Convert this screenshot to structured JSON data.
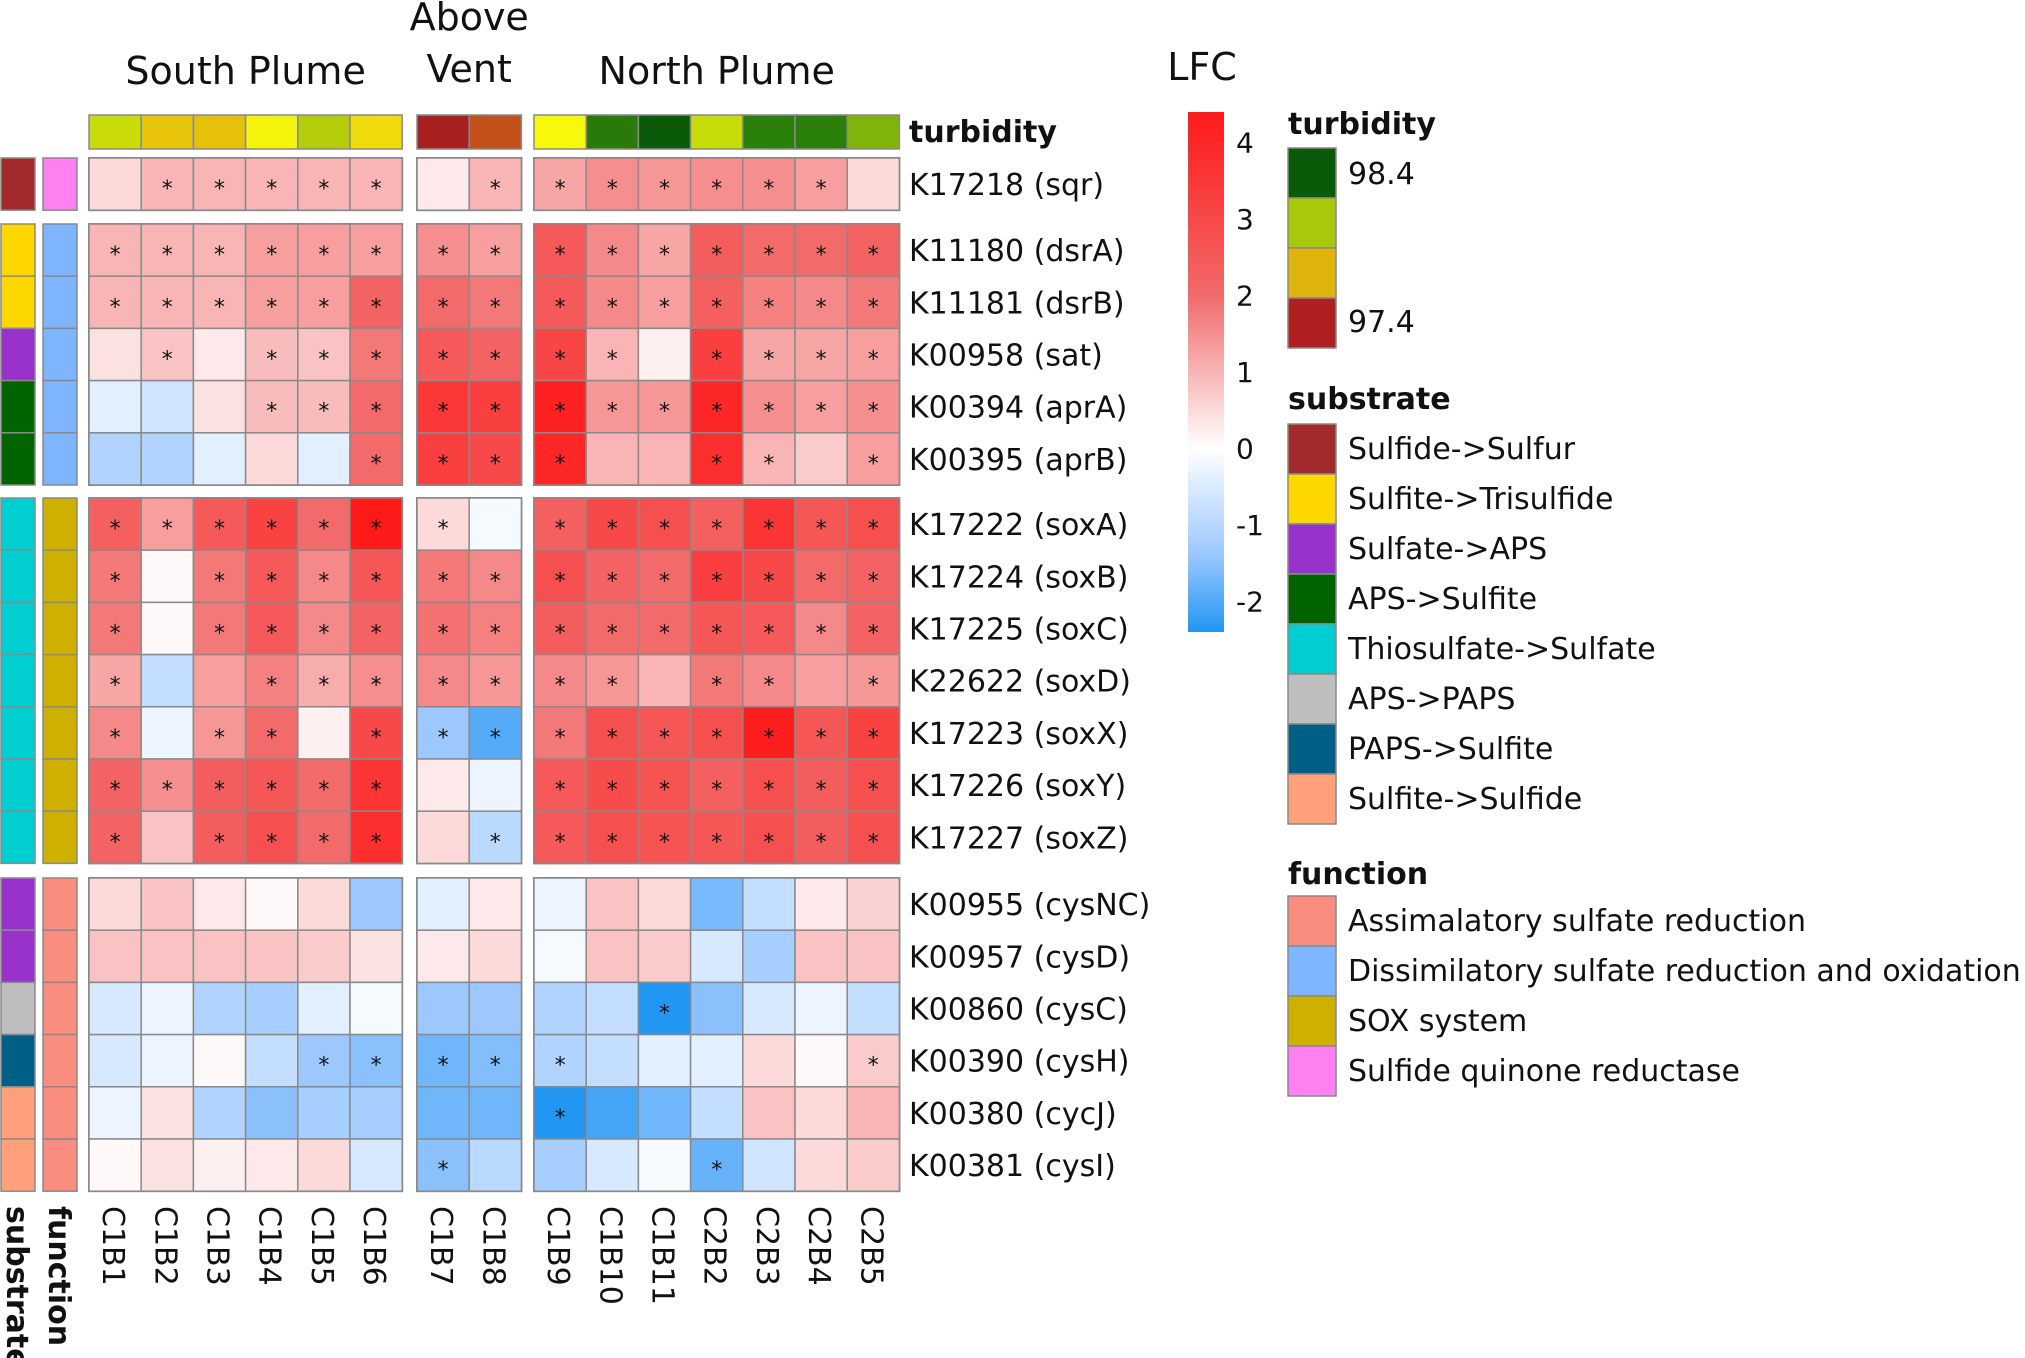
{
  "chart_data": {
    "type": "heatmap",
    "value_label": "LFC",
    "colorbar": {
      "min": -2.4,
      "max": 4.4,
      "ticks": [
        "4",
        "3",
        "2",
        "1",
        "0",
        "-1",
        "-2"
      ],
      "tick_values": [
        4,
        3,
        2,
        1,
        0,
        -1,
        -2
      ]
    },
    "groups": [
      {
        "name": "South Plume",
        "columns": [
          "C1B1",
          "C1B2",
          "C1B3",
          "C1B4",
          "C1B5",
          "C1B6"
        ]
      },
      {
        "name": "Above Vent",
        "name_lines": [
          "Above",
          "Vent"
        ],
        "columns": [
          "C1B7",
          "C1B8"
        ]
      },
      {
        "name": "North Plume",
        "columns": [
          "C1B9",
          "C1B10",
          "C1B11",
          "C2B2",
          "C2B3",
          "C2B4",
          "C2B5"
        ]
      }
    ],
    "columns": [
      "C1B1",
      "C1B2",
      "C1B3",
      "C1B4",
      "C1B5",
      "C1B6",
      "C1B7",
      "C1B8",
      "C1B9",
      "C1B10",
      "C1B11",
      "C2B2",
      "C2B3",
      "C2B4",
      "C2B5"
    ],
    "turbidity": {
      "label": "turbidity",
      "colors": [
        "#c8dc0a",
        "#e8c40a",
        "#e6c00a",
        "#f4f40a",
        "#b4cc0a",
        "#f0dc0a",
        "#a82020",
        "#c4501a",
        "#f8f80a",
        "#2a7a0a",
        "#0a5a0a",
        "#c8dc0a",
        "#2a800a",
        "#2a800a",
        "#80b40a"
      ]
    },
    "row_groups": [
      [
        {
          "label": "K17218 (sqr)",
          "substrate": "Sulfide->Sulfur",
          "function": "Sulfide quinone reductase",
          "values": [
            0.5,
            1.0,
            1.0,
            1.0,
            1.0,
            1.0,
            0.3,
            1.0,
            1.2,
            1.5,
            1.4,
            1.5,
            1.5,
            1.3,
            0.5
          ],
          "sig": [
            0,
            1,
            1,
            1,
            1,
            1,
            0,
            1,
            1,
            1,
            1,
            1,
            1,
            1,
            0
          ]
        }
      ],
      [
        {
          "label": "K11180 (dsrA)",
          "substrate": "Sulfite->Trisulfide",
          "function": "Dissimilatory sulfate reduction and oxidation",
          "values": [
            1.0,
            1.0,
            1.0,
            1.3,
            1.3,
            1.3,
            1.5,
            1.3,
            2.5,
            1.6,
            1.2,
            2.4,
            2.0,
            2.0,
            2.2
          ],
          "sig": [
            1,
            1,
            1,
            1,
            1,
            1,
            1,
            1,
            1,
            1,
            1,
            1,
            1,
            1,
            1
          ]
        },
        {
          "label": "K11181 (dsrB)",
          "substrate": "Sulfite->Trisulfide",
          "function": "Dissimilatory sulfate reduction and oxidation",
          "values": [
            1.0,
            1.0,
            1.0,
            1.3,
            1.3,
            2.2,
            2.0,
            1.8,
            2.5,
            1.6,
            1.3,
            2.3,
            1.7,
            1.6,
            1.8
          ],
          "sig": [
            1,
            1,
            1,
            1,
            1,
            1,
            1,
            1,
            1,
            1,
            1,
            1,
            1,
            1,
            1
          ]
        },
        {
          "label": "K00958 (sat)",
          "substrate": "Sulfate->APS",
          "function": "Dissimilatory sulfate reduction and oxidation",
          "values": [
            0.4,
            0.8,
            0.3,
            0.9,
            0.8,
            1.8,
            2.5,
            2.2,
            3.1,
            1.0,
            0.2,
            3.3,
            1.2,
            1.2,
            1.3
          ],
          "sig": [
            0,
            1,
            0,
            1,
            1,
            1,
            1,
            1,
            1,
            1,
            0,
            1,
            1,
            1,
            1
          ]
        },
        {
          "label": "K00394 (aprA)",
          "substrate": "APS->Sulfite",
          "function": "Dissimilatory sulfate reduction and oxidation",
          "values": [
            -0.3,
            -0.5,
            0.4,
            0.9,
            0.9,
            2.0,
            3.5,
            3.3,
            4.2,
            1.4,
            1.4,
            4.0,
            1.5,
            1.3,
            1.5
          ],
          "sig": [
            0,
            0,
            0,
            1,
            1,
            1,
            1,
            1,
            1,
            1,
            1,
            1,
            1,
            1,
            1
          ]
        },
        {
          "label": "K00395 (aprB)",
          "substrate": "APS->Sulfite",
          "function": "Dissimilatory sulfate reduction and oxidation",
          "values": [
            -0.8,
            -0.8,
            -0.3,
            0.5,
            -0.3,
            2.0,
            3.3,
            3.0,
            4.0,
            1.0,
            1.0,
            3.8,
            1.0,
            0.7,
            1.3
          ],
          "sig": [
            0,
            0,
            0,
            0,
            0,
            1,
            1,
            1,
            1,
            0,
            0,
            1,
            1,
            0,
            1
          ]
        }
      ],
      [
        {
          "label": "K17222 (soxA)",
          "substrate": "Thiosulfate->Sulfate",
          "function": "SOX system",
          "values": [
            2.3,
            1.3,
            2.5,
            3.2,
            2.0,
            4.4,
            0.5,
            -0.1,
            2.3,
            3.0,
            2.8,
            2.3,
            3.6,
            2.6,
            2.8
          ],
          "sig": [
            1,
            1,
            1,
            1,
            1,
            1,
            1,
            0,
            1,
            1,
            1,
            1,
            1,
            1,
            1
          ]
        },
        {
          "label": "K17224 (soxB)",
          "substrate": "Thiosulfate->Sulfate",
          "function": "SOX system",
          "values": [
            1.8,
            0.1,
            1.8,
            2.5,
            1.6,
            2.6,
            1.8,
            1.6,
            2.8,
            2.2,
            2.0,
            3.3,
            3.0,
            2.0,
            2.2
          ],
          "sig": [
            1,
            0,
            1,
            1,
            1,
            1,
            1,
            1,
            1,
            1,
            1,
            1,
            1,
            1,
            1
          ]
        },
        {
          "label": "K17225 (soxC)",
          "substrate": "Thiosulfate->Sulfate",
          "function": "SOX system",
          "values": [
            1.8,
            0.1,
            1.8,
            2.5,
            1.6,
            2.2,
            1.9,
            1.7,
            2.4,
            2.0,
            2.0,
            2.6,
            2.5,
            1.6,
            2.2
          ],
          "sig": [
            1,
            0,
            1,
            1,
            1,
            1,
            1,
            1,
            1,
            1,
            1,
            1,
            1,
            1,
            1
          ]
        },
        {
          "label": "K22622 (soxD)",
          "substrate": "Thiosulfate->Sulfate",
          "function": "SOX system",
          "values": [
            1.2,
            -0.6,
            1.3,
            1.7,
            1.1,
            1.5,
            1.6,
            1.4,
            1.6,
            1.4,
            1.0,
            1.8,
            1.6,
            1.3,
            1.4
          ],
          "sig": [
            1,
            0,
            0,
            1,
            1,
            1,
            1,
            1,
            1,
            1,
            0,
            1,
            1,
            0,
            1
          ]
        },
        {
          "label": "K17223 (soxX)",
          "substrate": "Thiosulfate->Sulfate",
          "function": "SOX system",
          "values": [
            1.6,
            -0.2,
            1.4,
            2.0,
            0.2,
            3.0,
            -1.0,
            -1.8,
            1.8,
            2.8,
            2.6,
            2.8,
            4.3,
            2.6,
            3.2
          ],
          "sig": [
            1,
            0,
            1,
            1,
            0,
            1,
            1,
            1,
            1,
            1,
            1,
            1,
            1,
            1,
            1
          ]
        },
        {
          "label": "K17226 (soxY)",
          "substrate": "Thiosulfate->Sulfate",
          "function": "SOX system",
          "values": [
            2.2,
            1.5,
            2.4,
            2.6,
            2.0,
            3.6,
            0.3,
            -0.2,
            2.5,
            2.9,
            2.7,
            2.3,
            2.8,
            2.4,
            2.8
          ],
          "sig": [
            1,
            1,
            1,
            1,
            1,
            1,
            0,
            0,
            1,
            1,
            1,
            1,
            1,
            1,
            1
          ]
        },
        {
          "label": "K17227 (soxZ)",
          "substrate": "Thiosulfate->Sulfate",
          "function": "SOX system",
          "values": [
            2.2,
            0.8,
            2.4,
            2.8,
            2.0,
            3.8,
            0.5,
            -0.7,
            2.5,
            2.8,
            2.7,
            2.6,
            2.8,
            2.4,
            2.8
          ],
          "sig": [
            1,
            0,
            1,
            1,
            1,
            1,
            0,
            1,
            1,
            1,
            1,
            1,
            1,
            1,
            1
          ]
        }
      ],
      [
        {
          "label": "K00955 (cysNC)",
          "substrate": "Sulfate->APS",
          "function": "Assimalatory sulfate reduction",
          "values": [
            0.5,
            0.8,
            0.3,
            0.1,
            0.5,
            -1.0,
            -0.3,
            0.3,
            -0.2,
            0.8,
            0.5,
            -1.4,
            -0.6,
            0.3,
            0.6
          ],
          "sig": [
            0,
            0,
            0,
            0,
            0,
            0,
            0,
            0,
            0,
            0,
            0,
            0,
            0,
            0,
            0
          ]
        },
        {
          "label": "K00957 (cysD)",
          "substrate": "Sulfate->APS",
          "function": "Assimalatory sulfate reduction",
          "values": [
            0.8,
            0.8,
            0.8,
            0.8,
            0.7,
            0.4,
            0.3,
            0.5,
            -0.1,
            0.8,
            0.7,
            -0.4,
            -0.9,
            0.8,
            0.8
          ],
          "sig": [
            0,
            0,
            0,
            0,
            0,
            0,
            0,
            0,
            0,
            0,
            0,
            0,
            0,
            0,
            0
          ]
        },
        {
          "label": "K00860 (cysC)",
          "substrate": "APS->PAPS",
          "function": "Assimalatory sulfate reduction",
          "values": [
            -0.4,
            -0.2,
            -0.8,
            -0.9,
            -0.3,
            -0.1,
            -1.0,
            -1.0,
            -0.8,
            -0.6,
            -2.4,
            -1.2,
            -0.4,
            -0.2,
            -0.6
          ],
          "sig": [
            0,
            0,
            0,
            0,
            0,
            0,
            0,
            0,
            0,
            0,
            1,
            0,
            0,
            0,
            0
          ]
        },
        {
          "label": "K00390 (cysH)",
          "substrate": "PAPS->Sulfite",
          "function": "Assimalatory sulfate reduction",
          "values": [
            -0.4,
            -0.2,
            0.1,
            -0.6,
            -1.0,
            -1.2,
            -1.5,
            -1.3,
            -0.8,
            -0.6,
            -0.3,
            -0.3,
            0.5,
            0.1,
            0.7
          ],
          "sig": [
            0,
            0,
            0,
            0,
            1,
            1,
            1,
            1,
            1,
            0,
            0,
            0,
            0,
            0,
            1
          ]
        },
        {
          "label": "K00380 (cycJ)",
          "substrate": "Sulfite->Sulfide",
          "function": "Assimalatory sulfate reduction",
          "values": [
            -0.2,
            0.4,
            -0.8,
            -1.2,
            -0.9,
            -0.9,
            -1.5,
            -1.5,
            -2.4,
            -2.0,
            -1.5,
            -0.6,
            0.8,
            0.5,
            1.0
          ],
          "sig": [
            0,
            0,
            0,
            0,
            0,
            0,
            0,
            0,
            1,
            0,
            0,
            0,
            0,
            0,
            0
          ]
        },
        {
          "label": "K00381 (cysI)",
          "substrate": "Sulfite->Sulfide",
          "function": "Assimalatory sulfate reduction",
          "values": [
            0.1,
            0.4,
            0.2,
            0.3,
            0.5,
            -0.4,
            -1.2,
            -0.7,
            -0.9,
            -0.4,
            -0.1,
            -1.6,
            -0.5,
            0.5,
            0.7
          ],
          "sig": [
            0,
            0,
            0,
            0,
            0,
            0,
            1,
            0,
            0,
            0,
            0,
            1,
            0,
            0,
            0
          ]
        }
      ]
    ],
    "annotation_columns": [
      "substrate",
      "function"
    ],
    "legends": {
      "turbidity": {
        "title": "turbidity",
        "labels": [
          "98.4",
          "97.4"
        ],
        "colors": [
          "#0a5a0a",
          "#a8c80a",
          "#e0b40a",
          "#b02020"
        ]
      },
      "substrate": {
        "title": "substrate",
        "entries": [
          {
            "label": "Sulfide->Sulfur",
            "color": "#a32a2a"
          },
          {
            "label": "Sulfite->Trisulfide",
            "color": "#ffd700"
          },
          {
            "label": "Sulfate->APS",
            "color": "#9932cc"
          },
          {
            "label": "APS->Sulfite",
            "color": "#006400"
          },
          {
            "label": "Thiosulfate->Sulfate",
            "color": "#00ced1"
          },
          {
            "label": "APS->PAPS",
            "color": "#bebebe"
          },
          {
            "label": "PAPS->Sulfite",
            "color": "#005f87"
          },
          {
            "label": "Sulfite->Sulfide",
            "color": "#ffa07a"
          }
        ]
      },
      "function": {
        "title": "function",
        "entries": [
          {
            "label": "Assimalatory sulfate reduction",
            "color": "#fa8c80"
          },
          {
            "label": "Dissimilatory sulfate reduction and oxidation",
            "color": "#7fb4ff"
          },
          {
            "label": "SOX system",
            "color": "#cdb000"
          },
          {
            "label": "Sulfide quinone reductase",
            "color": "#ff80f0"
          }
        ]
      }
    }
  }
}
